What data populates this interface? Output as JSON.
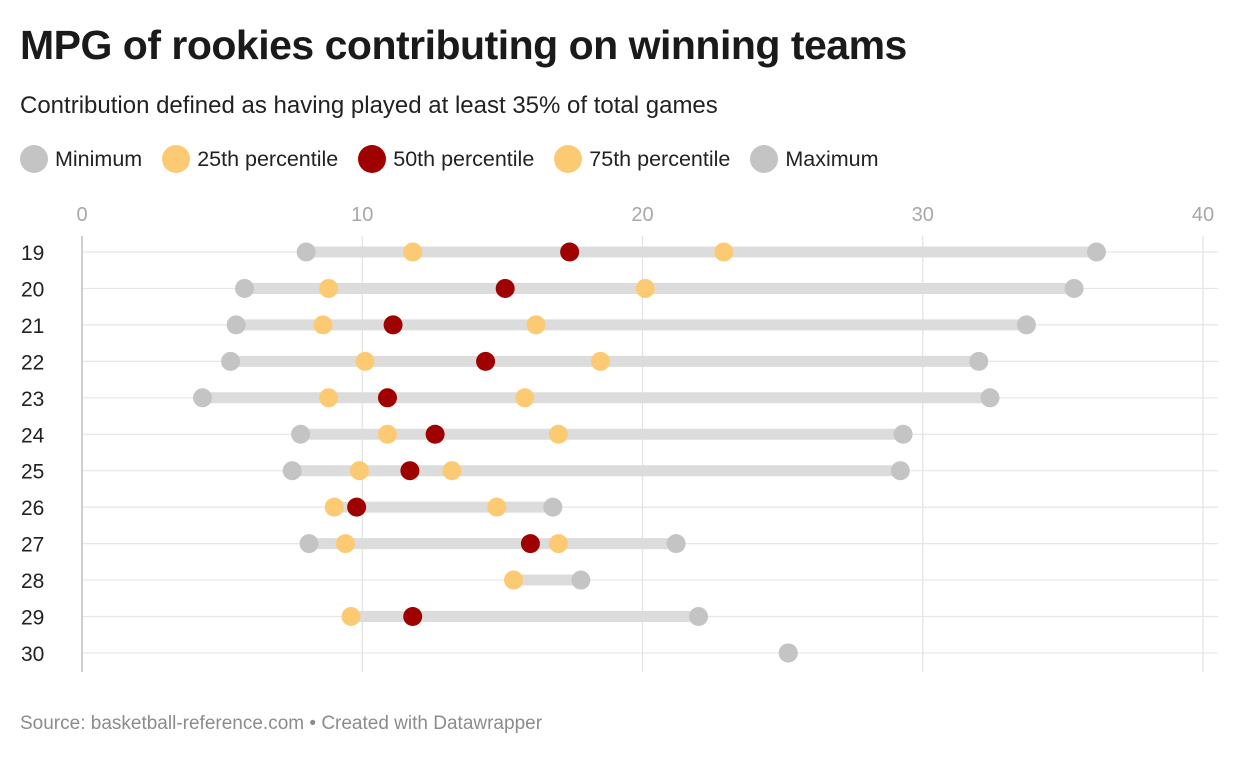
{
  "header": {
    "title": "MPG of rookies contributing on winning teams",
    "subtitle": "Contribution defined as having played at least 35% of total games"
  },
  "legend": [
    {
      "label": "Minimum",
      "color": "#c4c4c4"
    },
    {
      "label": "25th percentile",
      "color": "#fdca74"
    },
    {
      "label": "50th percentile",
      "color": "#9f0000"
    },
    {
      "label": "75th percentile",
      "color": "#fdca74"
    },
    {
      "label": "Maximum",
      "color": "#c4c4c4"
    }
  ],
  "footer": {
    "source": "Source: basketball-reference.com",
    "separator": "•",
    "credit": "Created with Datawrapper"
  },
  "chart_data": {
    "type": "range-dot",
    "xlim": [
      0,
      40
    ],
    "x_ticks": [
      "0",
      "10",
      "20",
      "30",
      "40"
    ],
    "grid": true,
    "legend_position": "top",
    "series_order": [
      "min",
      "p25",
      "p50",
      "p75",
      "max"
    ],
    "colors": {
      "min": "#c4c4c4",
      "p25": "#fdca74",
      "p50": "#9f0000",
      "p75": "#fdca74",
      "max": "#c4c4c4",
      "bar": "#dcdcdc"
    },
    "rows": [
      {
        "label": "19",
        "min": 8.0,
        "p25": 11.8,
        "p50": 17.4,
        "p75": 22.9,
        "max": 36.2
      },
      {
        "label": "20",
        "min": 5.8,
        "p25": 8.8,
        "p50": 15.1,
        "p75": 20.1,
        "max": 35.4
      },
      {
        "label": "21",
        "min": 5.5,
        "p25": 8.6,
        "p50": 11.1,
        "p75": 16.2,
        "max": 33.7
      },
      {
        "label": "22",
        "min": 5.3,
        "p25": 10.1,
        "p50": 14.4,
        "p75": 18.5,
        "max": 32.0
      },
      {
        "label": "23",
        "min": 4.3,
        "p25": 8.8,
        "p50": 10.9,
        "p75": 15.8,
        "max": 32.4
      },
      {
        "label": "24",
        "min": 7.8,
        "p25": 10.9,
        "p50": 12.6,
        "p75": 17.0,
        "max": 29.3
      },
      {
        "label": "25",
        "min": 7.5,
        "p25": 9.9,
        "p50": 11.7,
        "p75": 13.2,
        "max": 29.2
      },
      {
        "label": "26",
        "min": null,
        "p25": 9.0,
        "p50": 9.8,
        "p75": 14.8,
        "max": 16.8
      },
      {
        "label": "27",
        "min": 8.1,
        "p25": 9.4,
        "p50": 16.0,
        "p75": 17.0,
        "max": 21.2
      },
      {
        "label": "28",
        "min": null,
        "p25": 15.4,
        "p50": null,
        "p75": 15.4,
        "max": 17.8
      },
      {
        "label": "29",
        "min": null,
        "p25": 9.6,
        "p50": 11.8,
        "p75": null,
        "max": 22.0
      },
      {
        "label": "30",
        "min": 25.2,
        "p25": null,
        "p50": null,
        "p75": null,
        "max": 25.2
      }
    ]
  }
}
